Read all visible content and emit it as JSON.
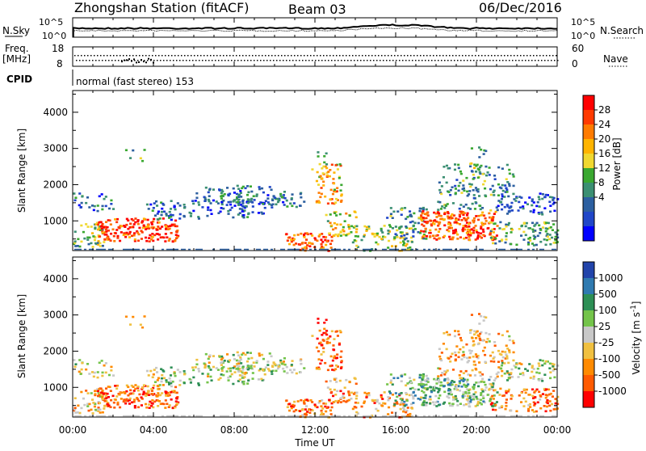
{
  "header": {
    "station": "Zhongshan Station (fitACF)",
    "beam": "Beam 03",
    "date": "06/Dec/2016"
  },
  "top_panel": {
    "left_label": "N.Sky",
    "right_label": "N.Search",
    "left_ticks": [
      "10^5",
      "10^0"
    ],
    "right_ticks": [
      "10^5",
      "10^0"
    ]
  },
  "freq_panel": {
    "left_label_1": "Freq.",
    "left_label_2": "[MHz]",
    "left_ticks": [
      "18",
      "8"
    ],
    "right_label": "Nave",
    "right_ticks": [
      "60",
      "0"
    ]
  },
  "cpid": {
    "label": "CPID",
    "text": "normal (fast stereo) 153"
  },
  "chart_data": [
    {
      "type": "heatmap",
      "ylabel": "Slant Range [km]",
      "yticks": [
        "1000",
        "2000",
        "3000",
        "4000"
      ],
      "ylim": [
        180,
        4600
      ],
      "xlim_hours": [
        0,
        24
      ],
      "colorbar_label": "Power [dB]",
      "colorbar_ticks": [
        "28",
        "24",
        "20",
        "16",
        "12",
        "8",
        "4"
      ],
      "colorbar_colors": [
        "#ff0000",
        "#ff3a00",
        "#ff7b00",
        "#ffb400",
        "#f0d830",
        "#3aa830",
        "#3b8f72",
        "#2c5fa0",
        "#2046c8",
        "#0000ff"
      ]
    },
    {
      "type": "heatmap",
      "ylabel": "Slant Range [km]",
      "yticks": [
        "1000",
        "2000",
        "3000",
        "4000"
      ],
      "ylim": [
        180,
        4600
      ],
      "xlim_hours": [
        0,
        24
      ],
      "colorbar_label": "Velocity [m s",
      "colorbar_label_sup": "-1",
      "colorbar_label_end": "]",
      "colorbar_ticks": [
        "1000",
        "500",
        "100",
        "25",
        "-25",
        "-100",
        "-500",
        "-1000"
      ],
      "colorbar_colors": [
        "#2244aa",
        "#2f7ab0",
        "#2d8f55",
        "#74c44a",
        "#c8c8c8",
        "#f0c040",
        "#ff8a00",
        "#ff5a00",
        "#ff0000"
      ]
    }
  ],
  "x_axis": {
    "ticks": [
      "00:00",
      "04:00",
      "08:00",
      "12:00",
      "16:00",
      "20:00",
      "00:00"
    ],
    "label": "Time UT"
  }
}
